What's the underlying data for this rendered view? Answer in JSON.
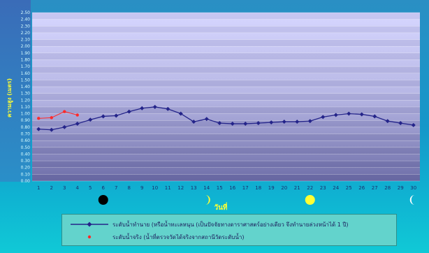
{
  "chart_data": {
    "type": "line",
    "title": "",
    "xlabel": "วันที่",
    "ylabel": "ความสูง (เมตร)",
    "ylim": [
      0,
      2.5
    ],
    "yticks": [
      "0.00",
      "0.10",
      "0.20",
      "0.30",
      "0.40",
      "0.50",
      "0.60",
      "0.70",
      "0.80",
      "0.90",
      "1.00",
      "1.10",
      "1.20",
      "1.30",
      "1.40",
      "1.50",
      "1.60",
      "1.70",
      "1.80",
      "1.90",
      "2.00",
      "2.10",
      "2.20",
      "2.30",
      "2.40",
      "2.50"
    ],
    "xticks": [
      "1",
      "2",
      "3",
      "4",
      "5",
      "6",
      "7",
      "8",
      "9",
      "10",
      "11",
      "12",
      "13",
      "14",
      "15",
      "16",
      "17",
      "18",
      "19",
      "20",
      "21",
      "22",
      "23",
      "24",
      "25",
      "26",
      "27",
      "28",
      "29",
      "30"
    ],
    "grid": true,
    "legend_position": "bottom",
    "series": [
      {
        "name": "ระดับน้ำทำนาย (หรือน้ำทะเลหนุน (เป็นปัจจัยทางดาราศาสตร์อย่างเดียว จึงทำนายล่วงหน้าได้ 1 ปี)",
        "color": "#24248a",
        "marker": "diamond",
        "x": [
          1,
          2,
          3,
          4,
          5,
          6,
          7,
          8,
          9,
          10,
          11,
          12,
          13,
          14,
          15,
          16,
          17,
          18,
          19,
          20,
          21,
          22,
          23,
          24,
          25,
          26,
          27,
          28,
          29,
          30
        ],
        "values": [
          0.77,
          0.76,
          0.8,
          0.85,
          0.91,
          0.96,
          0.97,
          1.03,
          1.08,
          1.1,
          1.07,
          1.0,
          0.88,
          0.92,
          0.86,
          0.85,
          0.85,
          0.86,
          0.87,
          0.88,
          0.88,
          0.89,
          0.95,
          0.98,
          1.0,
          0.99,
          0.96,
          0.89,
          0.86,
          0.83
        ]
      },
      {
        "name": "ระดับน้ำจริง (น้ำที่ตรวจวัดได้จริงจากสถานีวัดระดับน้ำ)",
        "color": "#ff2a2a",
        "marker": "circle",
        "x": [
          1,
          2,
          3,
          4
        ],
        "values": [
          0.93,
          0.94,
          1.03,
          0.98
        ]
      }
    ],
    "moon_phases": [
      {
        "day": 6,
        "phase": "new-moon",
        "color": "#000000"
      },
      {
        "day": 14,
        "phase": "first-quarter",
        "color": "#ffff33"
      },
      {
        "day": 22,
        "phase": "full-moon",
        "color": "#ffff33"
      },
      {
        "day": 30,
        "phase": "last-quarter",
        "color": "#ffffff"
      }
    ]
  }
}
